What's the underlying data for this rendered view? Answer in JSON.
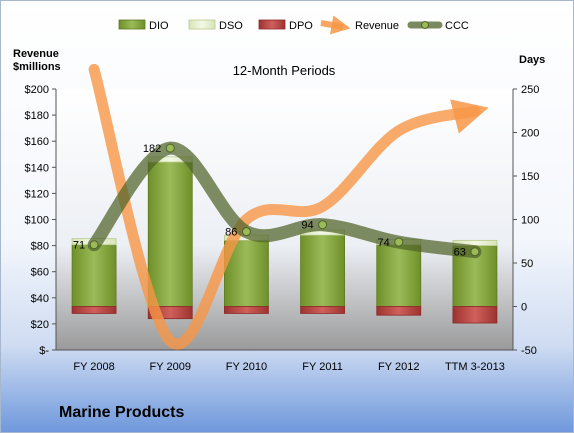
{
  "company": "Marine Products",
  "chart_data": {
    "type": "bar",
    "title": "12-Month Periods",
    "left_axis_label": "Revenue $millions",
    "right_axis_label": "Days",
    "categories": [
      "FY 2008",
      "FY 2009",
      "FY 2010",
      "FY 2011",
      "FY 2012",
      "TTM 3-2013"
    ],
    "left_axis": {
      "range": [
        0,
        200
      ],
      "tick_values": [
        0,
        20,
        40,
        60,
        80,
        100,
        120,
        140,
        160,
        180,
        200
      ],
      "tick_labels": [
        "$-",
        "$20",
        "$40",
        "$60",
        "$80",
        "$100",
        "$120",
        "$140",
        "$160",
        "$180",
        "$200"
      ]
    },
    "right_axis": {
      "range": [
        -50,
        250
      ],
      "tick_values": [
        -50,
        0,
        50,
        100,
        150,
        200,
        250
      ],
      "tick_labels": [
        "-50",
        "0",
        "50",
        "100",
        "150",
        "200",
        "250"
      ]
    },
    "grid": false,
    "legend_position": "top",
    "series": [
      {
        "name": "DIO",
        "type": "bar",
        "axis": "right",
        "color": "#8fae3c",
        "values": [
          71,
          166,
          76,
          82,
          71,
          70
        ]
      },
      {
        "name": "DSO",
        "type": "bar",
        "axis": "right",
        "color": "#e6f0cc",
        "values": [
          7,
          6,
          6,
          6,
          6,
          6
        ]
      },
      {
        "name": "DPO",
        "type": "bar",
        "axis": "right",
        "color": "#c0504d",
        "values": [
          -8,
          -14,
          -8,
          -8,
          -10,
          -19
        ]
      },
      {
        "name": "Revenue",
        "type": "line",
        "axis": "left",
        "color": "#f79646",
        "values": [
          215,
          7,
          100,
          110,
          168,
          183
        ]
      },
      {
        "name": "CCC",
        "type": "line",
        "axis": "right",
        "color": "#4f6228",
        "values": [
          71,
          182,
          86,
          94,
          74,
          63
        ],
        "labels": [
          "71",
          "182",
          "86",
          "94",
          "74",
          "63"
        ]
      }
    ]
  }
}
